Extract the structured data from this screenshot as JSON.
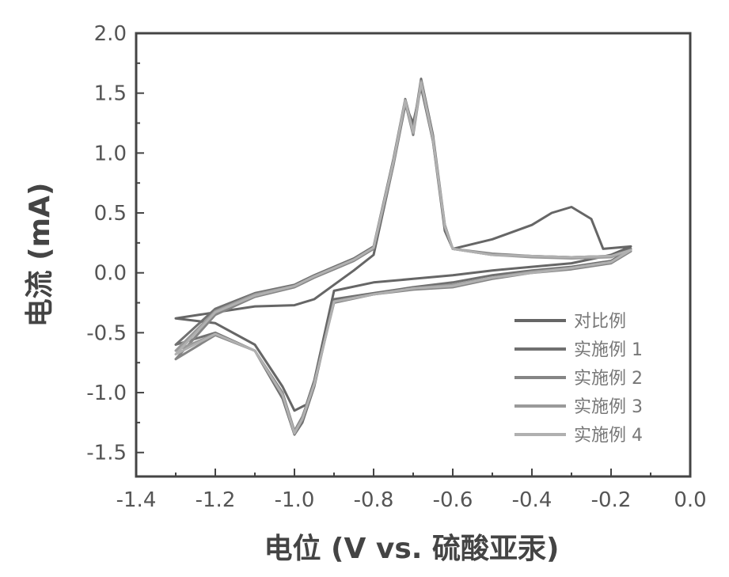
{
  "chart_data": {
    "type": "line",
    "xlabel": "电位 (V vs. 硫酸亚汞)",
    "ylabel": "电流 (mA)",
    "xlim": [
      -1.4,
      0.0
    ],
    "ylim": [
      -1.7,
      2.0
    ],
    "xticks": [
      "-1.4",
      "-1.2",
      "-1.0",
      "-0.8",
      "-0.6",
      "-0.4",
      "-0.2",
      "0.0"
    ],
    "yticks": [
      "2.0",
      "1.5",
      "1.0",
      "0.5",
      "0.0",
      "-0.5",
      "-1.0",
      "-1.5"
    ],
    "grid": false,
    "legend_position": "bottom-right",
    "series": [
      {
        "name": "对比例",
        "color": "#666666",
        "x": [
          -1.3,
          -1.2,
          -1.1,
          -1.0,
          -0.95,
          -0.9,
          -0.85,
          -0.8,
          -0.75,
          -0.72,
          -0.7,
          -0.68,
          -0.65,
          -0.62,
          -0.6,
          -0.5,
          -0.4,
          -0.35,
          -0.3,
          -0.25,
          -0.22,
          -0.15,
          -0.2,
          -0.3,
          -0.4,
          -0.5,
          -0.6,
          -0.7,
          -0.8,
          -0.9,
          -0.95,
          -0.97,
          -1.0,
          -1.03,
          -1.1,
          -1.2,
          -1.3
        ],
        "y": [
          -0.38,
          -0.33,
          -0.28,
          -0.27,
          -0.22,
          -0.1,
          0.02,
          0.15,
          0.9,
          1.4,
          1.25,
          1.55,
          1.1,
          0.35,
          0.2,
          0.28,
          0.4,
          0.5,
          0.55,
          0.45,
          0.2,
          0.22,
          0.15,
          0.08,
          0.05,
          0.02,
          -0.02,
          -0.05,
          -0.08,
          -0.15,
          -0.9,
          -1.1,
          -1.15,
          -0.95,
          -0.6,
          -0.42,
          -0.38
        ]
      },
      {
        "name": "实施例 1",
        "color": "#707070",
        "x": [
          -1.3,
          -1.2,
          -1.1,
          -1.0,
          -0.95,
          -0.9,
          -0.85,
          -0.8,
          -0.75,
          -0.72,
          -0.7,
          -0.68,
          -0.65,
          -0.62,
          -0.6,
          -0.5,
          -0.4,
          -0.3,
          -0.2,
          -0.15,
          -0.2,
          -0.3,
          -0.4,
          -0.5,
          -0.6,
          -0.7,
          -0.8,
          -0.9,
          -0.95,
          -0.98,
          -1.0,
          -1.03,
          -1.1,
          -1.2,
          -1.3
        ],
        "y": [
          -0.6,
          -0.3,
          -0.17,
          -0.1,
          -0.02,
          0.05,
          0.12,
          0.22,
          0.95,
          1.45,
          1.2,
          1.62,
          1.15,
          0.4,
          0.2,
          0.15,
          0.14,
          0.13,
          0.14,
          0.2,
          0.1,
          0.05,
          0.02,
          -0.02,
          -0.08,
          -0.12,
          -0.17,
          -0.22,
          -0.95,
          -1.25,
          -1.35,
          -1.05,
          -0.65,
          -0.5,
          -0.6
        ]
      },
      {
        "name": "实施例 2",
        "color": "#858585",
        "x": [
          -1.3,
          -1.2,
          -1.1,
          -1.0,
          -0.95,
          -0.9,
          -0.85,
          -0.8,
          -0.75,
          -0.72,
          -0.7,
          -0.68,
          -0.65,
          -0.62,
          -0.6,
          -0.5,
          -0.4,
          -0.3,
          -0.2,
          -0.15,
          -0.2,
          -0.3,
          -0.4,
          -0.5,
          -0.6,
          -0.7,
          -0.8,
          -0.9,
          -0.95,
          -0.98,
          -1.0,
          -1.03,
          -1.1,
          -1.2,
          -1.3
        ],
        "y": [
          -0.72,
          -0.35,
          -0.2,
          -0.12,
          -0.04,
          0.03,
          0.1,
          0.2,
          0.9,
          1.42,
          1.15,
          1.58,
          1.1,
          0.38,
          0.2,
          0.16,
          0.14,
          0.13,
          0.14,
          0.18,
          0.08,
          0.03,
          0.0,
          -0.05,
          -0.12,
          -0.14,
          -0.18,
          -0.25,
          -0.92,
          -1.2,
          -1.32,
          -1.0,
          -0.65,
          -0.52,
          -0.72
        ]
      },
      {
        "name": "实施例 3",
        "color": "#9a9a9a",
        "x": [
          -1.3,
          -1.2,
          -1.1,
          -1.0,
          -0.95,
          -0.9,
          -0.85,
          -0.8,
          -0.75,
          -0.72,
          -0.7,
          -0.68,
          -0.65,
          -0.62,
          -0.6,
          -0.5,
          -0.4,
          -0.3,
          -0.2,
          -0.15,
          -0.2,
          -0.3,
          -0.4,
          -0.5,
          -0.6,
          -0.7,
          -0.8,
          -0.9,
          -0.95,
          -0.98,
          -1.0,
          -1.03,
          -1.1,
          -1.2,
          -1.3
        ],
        "y": [
          -0.65,
          -0.32,
          -0.18,
          -0.11,
          -0.03,
          0.04,
          0.11,
          0.21,
          0.92,
          1.43,
          1.18,
          1.6,
          1.12,
          0.39,
          0.2,
          0.15,
          0.13,
          0.12,
          0.13,
          0.19,
          0.09,
          0.04,
          0.01,
          -0.04,
          -0.1,
          -0.13,
          -0.18,
          -0.24,
          -0.93,
          -1.22,
          -1.33,
          -1.02,
          -0.65,
          -0.51,
          -0.65
        ]
      },
      {
        "name": "实施例 4",
        "color": "#b0b0b0",
        "x": [
          -1.3,
          -1.2,
          -1.1,
          -1.0,
          -0.95,
          -0.9,
          -0.85,
          -0.8,
          -0.75,
          -0.72,
          -0.7,
          -0.68,
          -0.65,
          -0.62,
          -0.6,
          -0.5,
          -0.4,
          -0.3,
          -0.2,
          -0.15,
          -0.2,
          -0.3,
          -0.4,
          -0.5,
          -0.6,
          -0.7,
          -0.8,
          -0.9,
          -0.95,
          -0.98,
          -1.0,
          -1.03,
          -1.1,
          -1.2,
          -1.3
        ],
        "y": [
          -0.68,
          -0.33,
          -0.19,
          -0.11,
          -0.03,
          0.04,
          0.11,
          0.21,
          0.93,
          1.44,
          1.17,
          1.59,
          1.12,
          0.39,
          0.2,
          0.15,
          0.14,
          0.13,
          0.14,
          0.19,
          0.09,
          0.04,
          0.0,
          -0.04,
          -0.11,
          -0.13,
          -0.18,
          -0.24,
          -0.93,
          -1.22,
          -1.34,
          -1.02,
          -0.65,
          -0.51,
          -0.68
        ]
      }
    ]
  }
}
